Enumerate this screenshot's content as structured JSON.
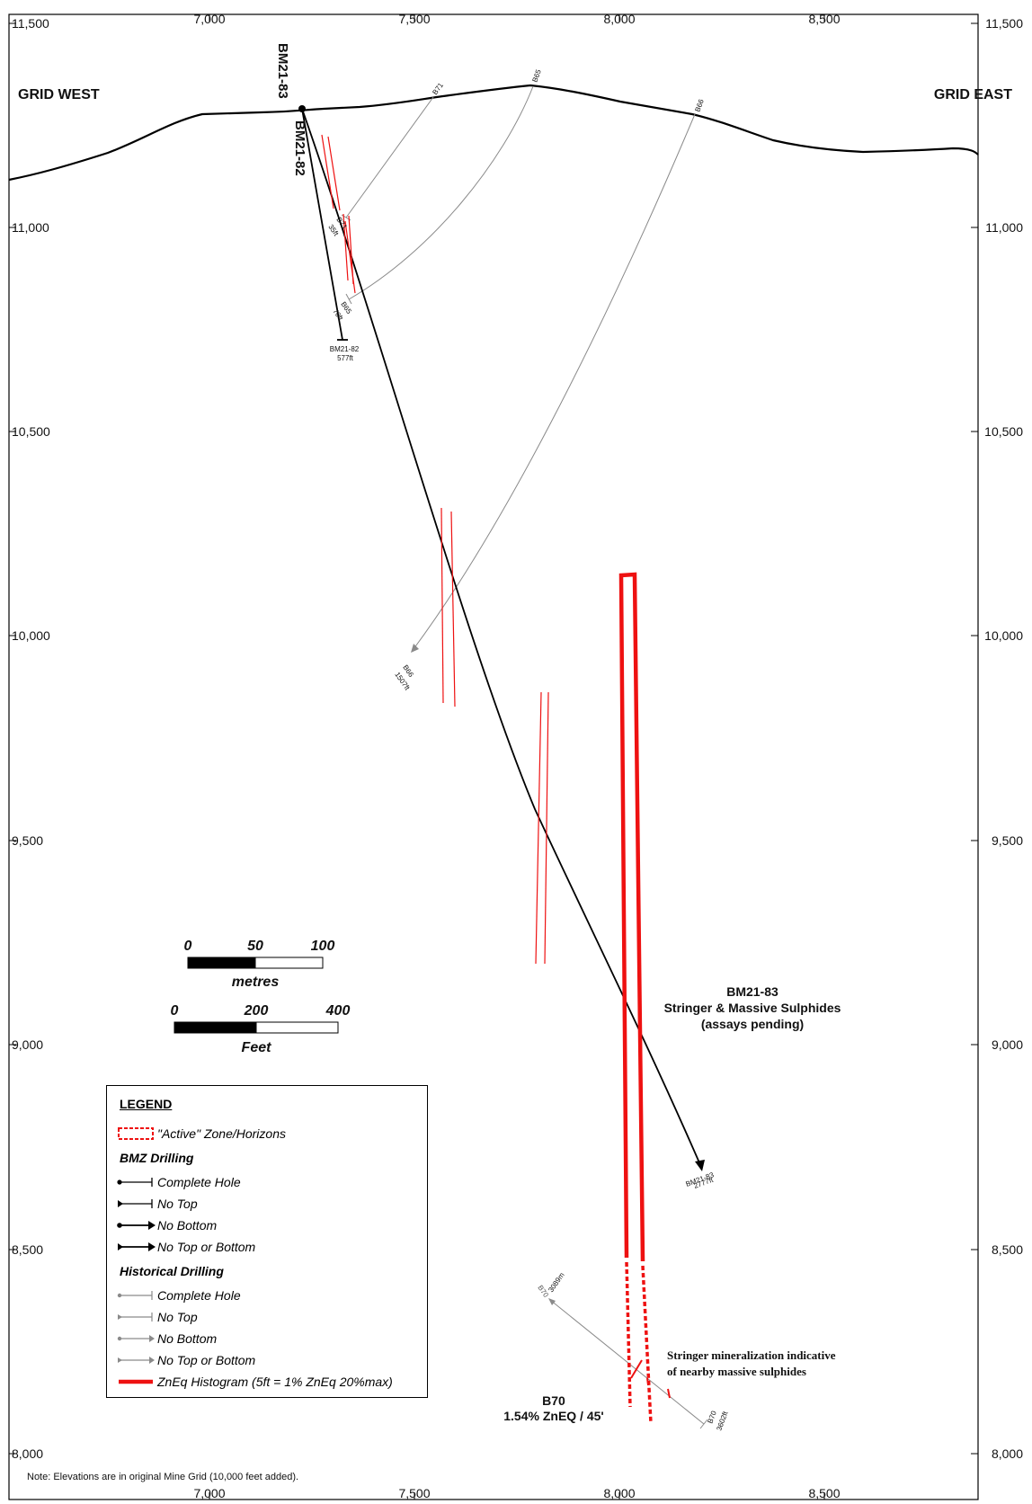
{
  "axes": {
    "x_ticks": [
      "7,000",
      "7,500",
      "8,000",
      "8,500"
    ],
    "y_ticks": [
      "11,500",
      "11,000",
      "10,500",
      "10,000",
      "9,500",
      "9,000",
      "8,500",
      "8,000"
    ]
  },
  "labels": {
    "grid_west": "GRID WEST",
    "grid_east": "GRID EAST",
    "bm2183_collar": "BM21-83",
    "bm2182_collar": "BM21-82",
    "b71_top": "B71",
    "b65_top": "B65",
    "b66_top": "B66",
    "b71_end": "B71",
    "b71_end_depth": "35ft",
    "b65_end": "B65",
    "b65_end_depth": "70ft",
    "bm2182_end": "BM21-82",
    "bm2182_end_depth": "577ft",
    "b66_end": "B66",
    "b66_end_depth": "1507ft",
    "bm2183_end": "BM21-83",
    "bm2183_end_depth": "2777ft",
    "b70_top": "B70",
    "b70_top_depth": "3089m",
    "b70_end": "B70",
    "b70_end_depth": "3602ft"
  },
  "annotations": {
    "bm2183_title": "BM21-83",
    "bm2183_line2": "Stringer & Massive Sulphides",
    "bm2183_line3": "(assays pending)",
    "stringer_line1": "Stringer mineralization indicative",
    "stringer_line2": "of nearby massive sulphides",
    "b70_title": "B70",
    "b70_result": "1.54% ZnEQ / 45'"
  },
  "scale_bars": {
    "metres": {
      "ticks": [
        "0",
        "50",
        "100"
      ],
      "unit": "metres"
    },
    "feet": {
      "ticks": [
        "0",
        "200",
        "400"
      ],
      "unit": "Feet"
    }
  },
  "legend": {
    "title": "LEGEND",
    "active_zone": "\"Active\" Zone/Horizons",
    "bmz_heading": "BMZ Drilling",
    "bmz_items": [
      "Complete Hole",
      "No Top",
      "No Bottom",
      "No Top or Bottom"
    ],
    "hist_heading": "Historical Drilling",
    "hist_items": [
      "Complete Hole",
      "No Top",
      "No Bottom",
      "No Top or Bottom"
    ],
    "histogram": "ZnEq Histogram (5ft = 1% ZnEq 20%max)"
  },
  "note": "Note: Elevations are in original Mine Grid (10,000 feet added).",
  "colors": {
    "bmz_hole": "#000000",
    "historical_hole": "#888888",
    "histogram": "#ee1111",
    "topography": "#000000"
  }
}
